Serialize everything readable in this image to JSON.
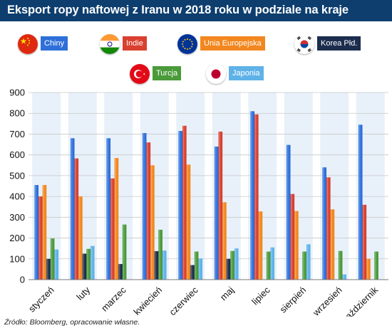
{
  "title": "Eksport ropy naftowej z Iranu w 2018 roku w podziale na kraje",
  "source": "Źródło: Bloomberg, opracowanie własne.",
  "legend": [
    {
      "label": "Chiny",
      "color": "#2e6fd9",
      "flag": "china-flag-icon"
    },
    {
      "label": "Indie",
      "color": "#d9402f",
      "flag": "india-flag-icon"
    },
    {
      "label": "Unia Europejska",
      "color": "#f2871f",
      "flag": "eu-flag-icon"
    },
    {
      "label": "Korea Płd.",
      "color": "#1c2d4e",
      "flag": "south-korea-flag-icon"
    },
    {
      "label": "Turcja",
      "color": "#4a9a3a",
      "flag": "turkey-flag-icon"
    },
    {
      "label": "Japonia",
      "color": "#5fb2e8",
      "flag": "japan-flag-icon"
    }
  ],
  "chart_data": {
    "type": "bar",
    "categories": [
      "styczeń",
      "luty",
      "marzec",
      "kwiecień",
      "czerwiec",
      "maj",
      "lipiec",
      "sierpień",
      "wrzesień",
      "październik"
    ],
    "ylim": [
      0,
      900
    ],
    "yticks": [
      0,
      100,
      200,
      300,
      400,
      500,
      600,
      700,
      800,
      900
    ],
    "grid": true,
    "legend_position": "top",
    "series": [
      {
        "name": "Chiny",
        "color": "#2e6fd9",
        "values": [
          455,
          680,
          680,
          705,
          715,
          640,
          810,
          648,
          540,
          745
        ]
      },
      {
        "name": "Indie",
        "color": "#d9402f",
        "values": [
          400,
          583,
          487,
          660,
          740,
          712,
          795,
          412,
          492,
          360
        ]
      },
      {
        "name": "Unia Europejska",
        "color": "#f2871f",
        "values": [
          455,
          400,
          585,
          550,
          553,
          372,
          328,
          330,
          338,
          100
        ]
      },
      {
        "name": "Korea Płd.",
        "color": "#1c2d4e",
        "values": [
          100,
          125,
          75,
          137,
          70,
          100,
          0,
          0,
          0,
          0
        ]
      },
      {
        "name": "Turcja",
        "color": "#4a9a3a",
        "values": [
          198,
          148,
          265,
          240,
          135,
          138,
          135,
          135,
          138,
          135
        ]
      },
      {
        "name": "Japonia",
        "color": "#5fb2e8",
        "values": [
          145,
          162,
          0,
          140,
          102,
          150,
          155,
          170,
          25,
          0
        ]
      }
    ]
  }
}
